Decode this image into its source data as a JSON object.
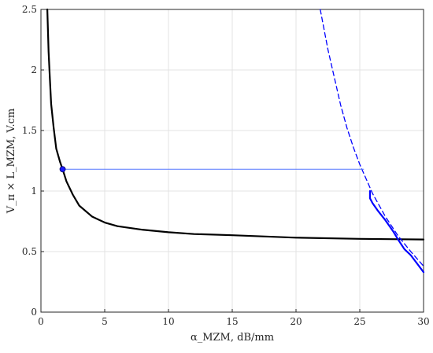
{
  "chart_data": {
    "type": "line",
    "xlabel": "α_MZM, dB/mm",
    "ylabel": "V_π × L_MZM, V.cm",
    "xlim": [
      0,
      30
    ],
    "ylim": [
      0,
      2.5
    ],
    "grid": true,
    "x_ticks": [
      {
        "value": 0,
        "label": "0"
      },
      {
        "value": 5,
        "label": "5"
      },
      {
        "value": 10,
        "label": "10"
      },
      {
        "value": 15,
        "label": "15"
      },
      {
        "value": 20,
        "label": "20"
      },
      {
        "value": 25,
        "label": "25"
      },
      {
        "value": 30,
        "label": "30"
      }
    ],
    "y_ticks": [
      {
        "value": 0,
        "label": "0"
      },
      {
        "value": 0.5,
        "label": "0.5"
      },
      {
        "value": 1.0,
        "label": "1"
      },
      {
        "value": 1.5,
        "label": "1.5"
      },
      {
        "value": 2.0,
        "label": "2"
      },
      {
        "value": 2.5,
        "label": "2.5"
      }
    ],
    "series": [
      {
        "color": "#000000",
        "style": "solid",
        "x": [
          0.5,
          0.6,
          0.7,
          0.8,
          1.0,
          1.2,
          1.5,
          1.7,
          2.0,
          2.5,
          3,
          4,
          5,
          6,
          8,
          10,
          12,
          15,
          20,
          25,
          30
        ],
        "y": [
          2.5,
          2.15,
          1.93,
          1.72,
          1.52,
          1.35,
          1.24,
          1.18,
          1.08,
          0.97,
          0.88,
          0.79,
          0.74,
          0.71,
          0.68,
          0.66,
          0.645,
          0.635,
          0.615,
          0.605,
          0.6
        ]
      },
      {
        "color": "#0000ff",
        "style": "dashed",
        "x": [
          21.9,
          22.5,
          23,
          23.5,
          24,
          24.5,
          25,
          25.5,
          26,
          27,
          28,
          29,
          30
        ],
        "y": [
          2.5,
          2.17,
          1.94,
          1.71,
          1.52,
          1.36,
          1.22,
          1.1,
          0.98,
          0.79,
          0.63,
          0.5,
          0.38
        ]
      },
      {
        "color": "#0000ff",
        "style": "solid-thick",
        "x": [
          25.8,
          25.8,
          26.0,
          26.4,
          27.0,
          27.6,
          28.0,
          28.5,
          29.0,
          29.5,
          30
        ],
        "y": [
          1.0,
          0.94,
          0.9,
          0.84,
          0.76,
          0.67,
          0.6,
          0.52,
          0.47,
          0.4,
          0.33
        ]
      },
      {
        "color": "#5577ff",
        "style": "thin-reference",
        "x": [
          1.7,
          25.3
        ],
        "y": [
          1.18,
          1.18
        ]
      }
    ],
    "marker": {
      "x": 1.7,
      "y": 1.18,
      "color": "#1a1aff"
    }
  }
}
